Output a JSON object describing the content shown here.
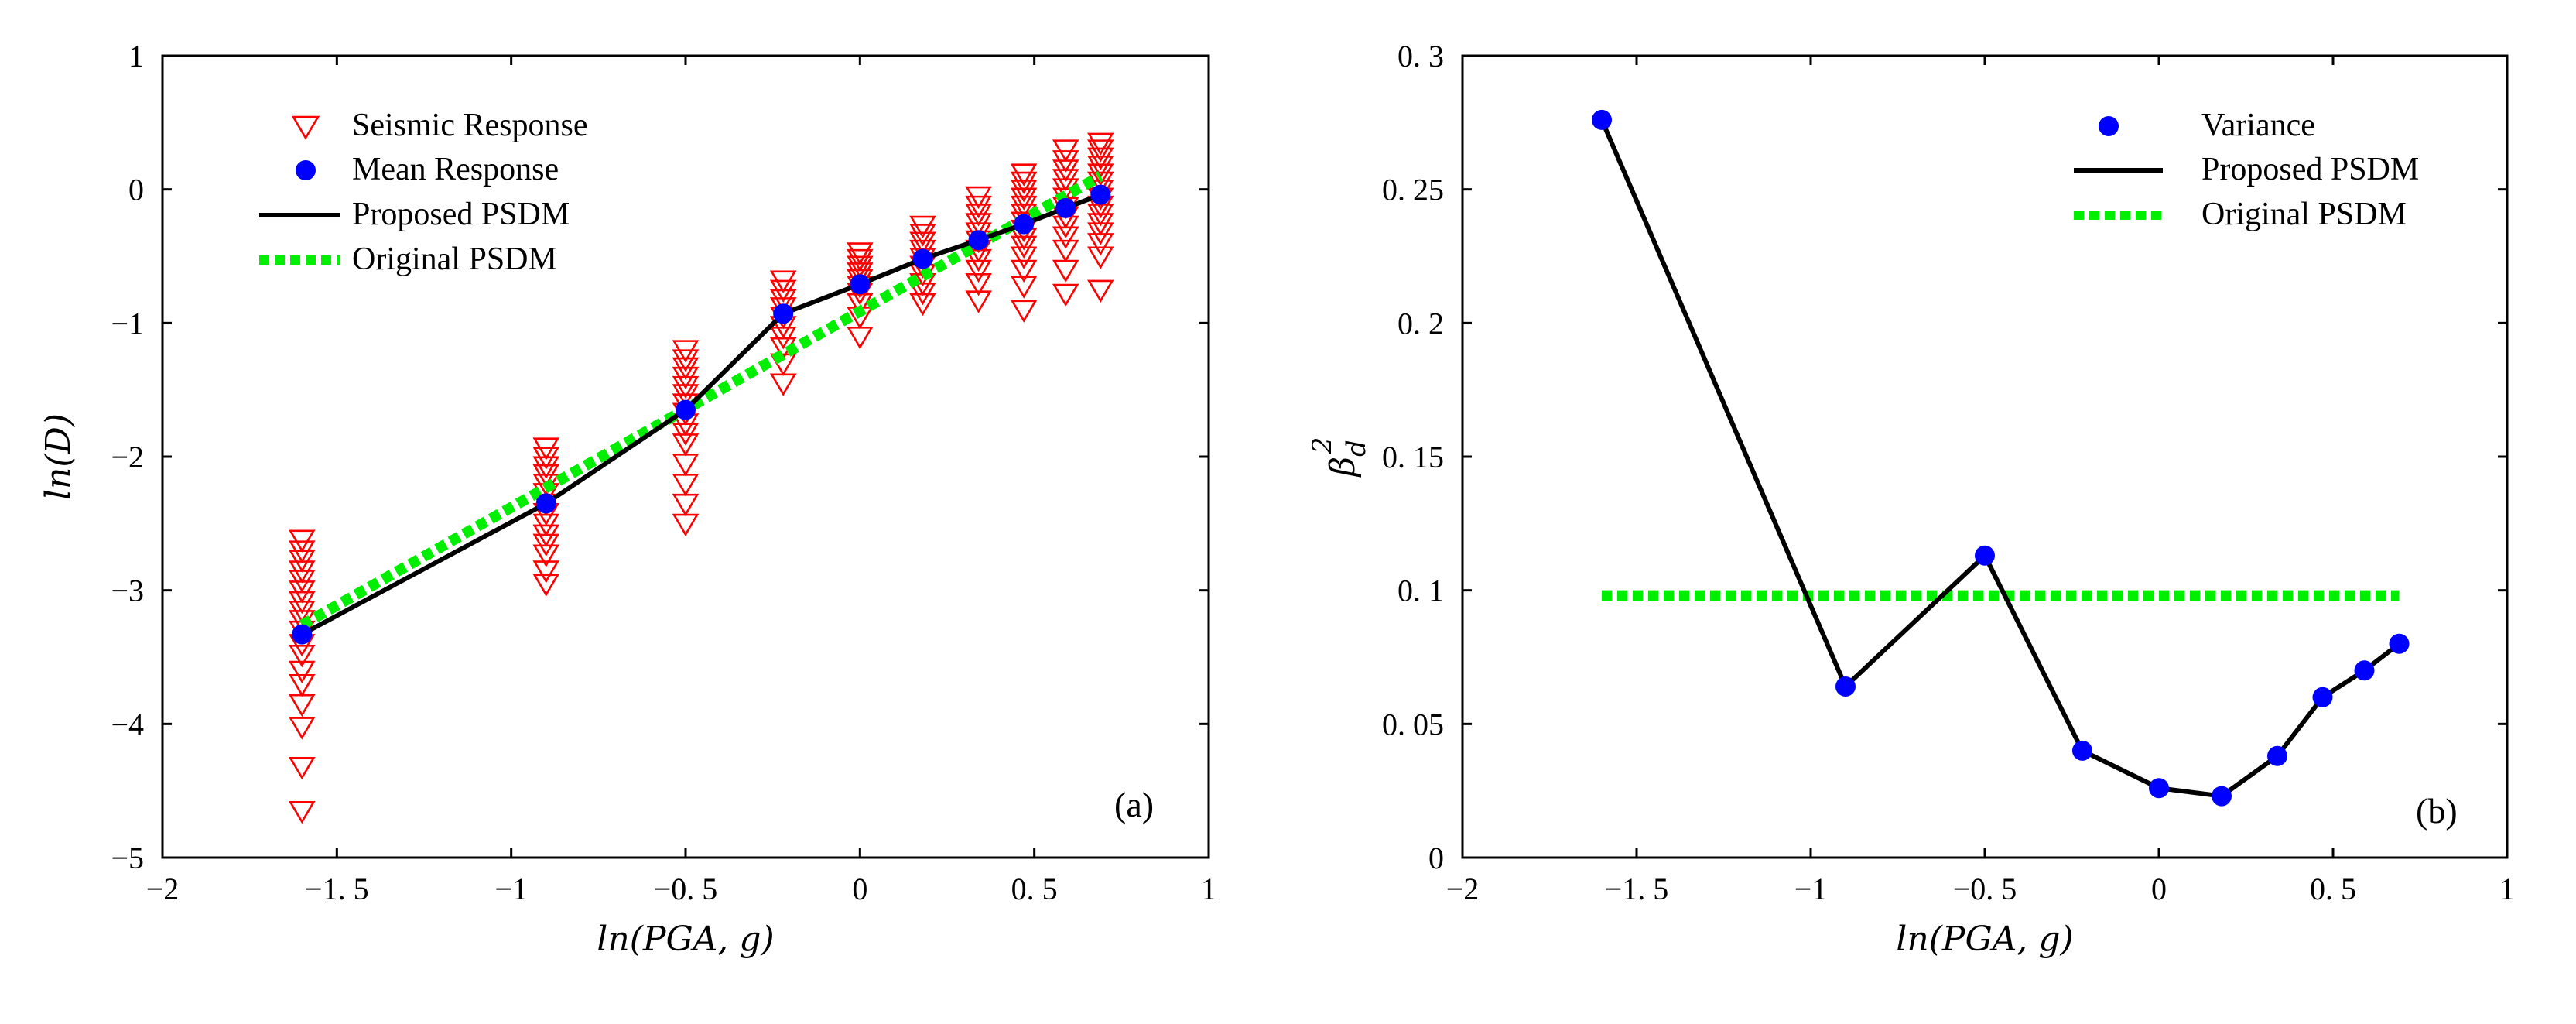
{
  "chart_data": [
    {
      "id": "a",
      "type": "scatter",
      "panel_label": "(a)",
      "xlabel": "ln(PGA, g)",
      "ylabel": "ln(D)",
      "xlim": [
        -2,
        1
      ],
      "ylim": [
        -5,
        1
      ],
      "xticks": [
        -2,
        -1.5,
        -1,
        -0.5,
        0,
        0.5,
        1
      ],
      "xtick_labels": [
        "−2",
        "−1. 5",
        "−1",
        "−0. 5",
        "0",
        "0. 5",
        "1"
      ],
      "yticks": [
        -5,
        -4,
        -3,
        -2,
        -1,
        0,
        1
      ],
      "ytick_labels": [
        "−5",
        "−4",
        "−3",
        "−2",
        "−1",
        "0",
        "1"
      ],
      "legend_position": "top-left",
      "legend": [
        "Seismic Response",
        "Mean Response",
        "Proposed PSDM",
        "Original PSDM"
      ],
      "colors": {
        "seismic": "#ff0000",
        "mean": "#0000ff",
        "proposed": "#000000",
        "original": "#00ee00"
      },
      "series": [
        {
          "name": "Seismic Response",
          "kind": "triangle-down-markers",
          "points": [
            {
              "x": -1.6,
              "y": [
                -2.62,
                -2.7,
                -2.77,
                -2.85,
                -2.92,
                -3.0,
                -3.08,
                -3.15,
                -3.22,
                -3.3,
                -3.4,
                -3.48,
                -3.6,
                -3.7,
                -3.85,
                -4.02,
                -4.32,
                -4.65
              ]
            },
            {
              "x": -0.9,
              "y": [
                -1.93,
                -2.0,
                -2.07,
                -2.13,
                -2.2,
                -2.27,
                -2.35,
                -2.42,
                -2.5,
                -2.58,
                -2.65,
                -2.73,
                -2.85,
                -2.95
              ]
            },
            {
              "x": -0.5,
              "y": [
                -1.2,
                -1.27,
                -1.33,
                -1.4,
                -1.47,
                -1.53,
                -1.6,
                -1.67,
                -1.75,
                -1.82,
                -1.9,
                -2.05,
                -2.2,
                -2.35,
                -2.5
              ]
            },
            {
              "x": -0.22,
              "y": [
                -0.68,
                -0.75,
                -0.82,
                -0.88,
                -0.95,
                -1.02,
                -1.1,
                -1.18,
                -1.3,
                -1.45
              ]
            },
            {
              "x": 0.0,
              "y": [
                -0.47,
                -0.52,
                -0.57,
                -0.62,
                -0.67,
                -0.72,
                -0.77,
                -0.85,
                -0.95,
                -1.1
              ]
            },
            {
              "x": 0.18,
              "y": [
                -0.27,
                -0.33,
                -0.39,
                -0.45,
                -0.51,
                -0.57,
                -0.63,
                -0.7,
                -0.77,
                -0.85
              ]
            },
            {
              "x": 0.34,
              "y": [
                -0.05,
                -0.12,
                -0.18,
                -0.25,
                -0.32,
                -0.38,
                -0.45,
                -0.52,
                -0.6,
                -0.7,
                -0.83
              ]
            },
            {
              "x": 0.47,
              "y": [
                0.12,
                0.06,
                0.0,
                -0.06,
                -0.12,
                -0.18,
                -0.24,
                -0.3,
                -0.36,
                -0.42,
                -0.5,
                -0.6,
                -0.72,
                -0.9
              ]
            },
            {
              "x": 0.59,
              "y": [
                0.3,
                0.22,
                0.15,
                0.08,
                0.01,
                -0.06,
                -0.13,
                -0.2,
                -0.27,
                -0.35,
                -0.45,
                -0.6,
                -0.78
              ]
            },
            {
              "x": 0.69,
              "y": [
                0.35,
                0.3,
                0.24,
                0.18,
                0.12,
                0.06,
                0.0,
                -0.06,
                -0.12,
                -0.18,
                -0.25,
                -0.32,
                -0.4,
                -0.5,
                -0.75
              ]
            }
          ]
        },
        {
          "name": "Mean Response",
          "kind": "dot-markers",
          "x": [
            -1.6,
            -0.9,
            -0.5,
            -0.22,
            0.0,
            0.18,
            0.34,
            0.47,
            0.59,
            0.69
          ],
          "y": [
            -3.33,
            -2.35,
            -1.65,
            -0.93,
            -0.71,
            -0.52,
            -0.38,
            -0.26,
            -0.14,
            -0.04
          ]
        },
        {
          "name": "Proposed PSDM",
          "kind": "solid-line",
          "x": [
            -1.6,
            -0.9,
            -0.5,
            -0.22,
            0.0,
            0.18,
            0.34,
            0.47,
            0.59,
            0.69
          ],
          "y": [
            -3.33,
            -2.35,
            -1.65,
            -0.93,
            -0.71,
            -0.52,
            -0.38,
            -0.26,
            -0.14,
            -0.04
          ]
        },
        {
          "name": "Original PSDM",
          "kind": "dotted-line",
          "x": [
            -1.6,
            0.69
          ],
          "y": [
            -3.26,
            0.1
          ]
        }
      ]
    },
    {
      "id": "b",
      "type": "line",
      "panel_label": "(b)",
      "xlabel": "ln(PGA, g)",
      "ylabel": "β_d^2",
      "ylabel_base": "β",
      "ylabel_sub": "d",
      "ylabel_sup": "2",
      "xlim": [
        -2,
        1
      ],
      "ylim": [
        0,
        0.3
      ],
      "xticks": [
        -2,
        -1.5,
        -1,
        -0.5,
        0,
        0.5,
        1
      ],
      "xtick_labels": [
        "−2",
        "−1. 5",
        "−1",
        "−0. 5",
        "0",
        "0. 5",
        "1"
      ],
      "yticks": [
        0,
        0.05,
        0.1,
        0.15,
        0.2,
        0.25,
        0.3
      ],
      "ytick_labels": [
        "0",
        "0. 05",
        "0. 1",
        "0. 15",
        "0. 2",
        "0. 25",
        "0. 3"
      ],
      "legend_position": "top-right",
      "legend": [
        "Variance",
        "Proposed PSDM",
        "Original PSDM"
      ],
      "colors": {
        "mean": "#0000ff",
        "proposed": "#000000",
        "original": "#00ee00"
      },
      "series": [
        {
          "name": "Variance",
          "kind": "dot-markers",
          "x": [
            -1.6,
            -0.9,
            -0.5,
            -0.22,
            0.0,
            0.18,
            0.34,
            0.47,
            0.59,
            0.69
          ],
          "y": [
            0.276,
            0.064,
            0.113,
            0.04,
            0.026,
            0.023,
            0.038,
            0.06,
            0.07,
            0.08
          ]
        },
        {
          "name": "Proposed PSDM",
          "kind": "solid-line",
          "x": [
            -1.6,
            -0.9,
            -0.5,
            -0.22,
            0.0,
            0.18,
            0.34,
            0.47,
            0.59,
            0.69
          ],
          "y": [
            0.276,
            0.064,
            0.113,
            0.04,
            0.026,
            0.023,
            0.038,
            0.06,
            0.07,
            0.08
          ]
        },
        {
          "name": "Original PSDM",
          "kind": "dotted-line",
          "x": [
            -1.6,
            0.69
          ],
          "y": [
            0.098,
            0.098
          ]
        }
      ]
    }
  ]
}
